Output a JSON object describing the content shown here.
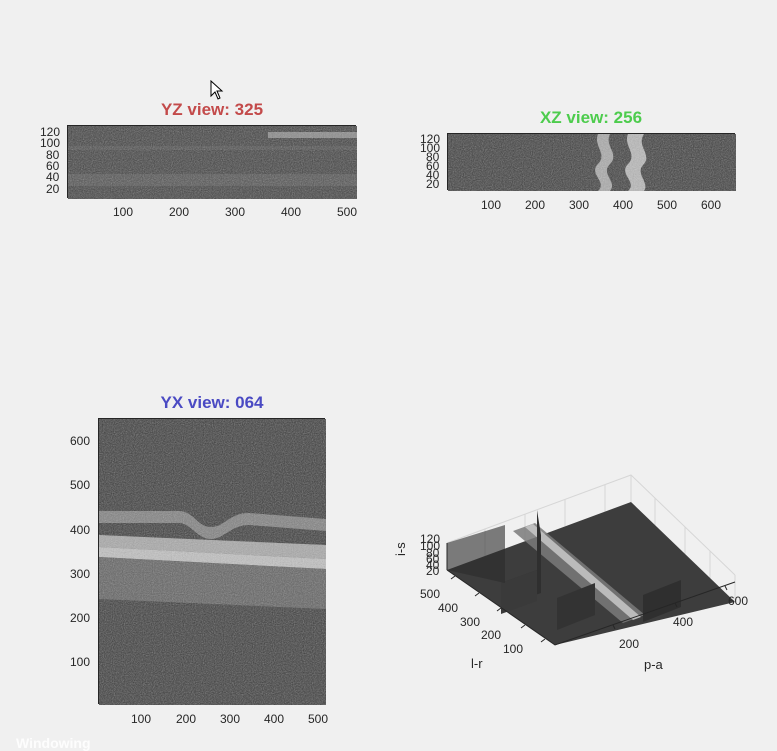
{
  "colors": {
    "yz": "#c34a4a",
    "xz": "#4dcc4d",
    "yx": "#4a4ac3",
    "axis": "#262626"
  },
  "views": {
    "yz": {
      "title": "YZ view: 325",
      "yticks": [
        "120",
        "100",
        "80",
        "60",
        "40",
        "20"
      ],
      "xticks": [
        "100",
        "200",
        "300",
        "400",
        "500"
      ]
    },
    "xz": {
      "title": "XZ view: 256",
      "yticks": [
        "120",
        "100",
        "80",
        "60",
        "40",
        "20"
      ],
      "xticks": [
        "100",
        "200",
        "300",
        "400",
        "500",
        "600"
      ]
    },
    "yx": {
      "title": "YX view: 064",
      "yticks": [
        "600",
        "500",
        "400",
        "300",
        "200",
        "100"
      ],
      "xticks": [
        "100",
        "200",
        "300",
        "400",
        "500"
      ]
    },
    "vol": {
      "zticks": [
        "120",
        "100",
        "80",
        "60",
        "40",
        "20"
      ],
      "lr_ticks": [
        "500",
        "400",
        "300",
        "200",
        "100"
      ],
      "pa_ticks": [
        "600",
        "400",
        "200"
      ],
      "xlabel": "p-a",
      "ylabel": "l-r",
      "zlabel": "i-s"
    }
  },
  "bottom_label": "Windowing",
  "cursor_icon": "mouse-pointer-icon"
}
